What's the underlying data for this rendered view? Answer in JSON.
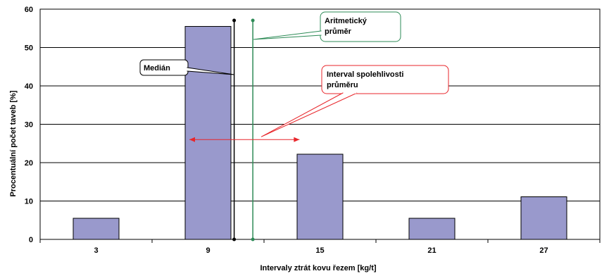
{
  "chart_data": {
    "type": "bar",
    "categories": [
      "3",
      "9",
      "15",
      "21",
      "27"
    ],
    "values": [
      5.5,
      55.5,
      22.2,
      5.5,
      11.1
    ],
    "xlabel": "Intervaly  ztrát kovu řezem [kg/t]",
    "ylabel": "Procentuální počet taveb [%]",
    "ylim": [
      0,
      60
    ],
    "yticks": [
      0,
      10,
      20,
      30,
      40,
      50,
      60
    ],
    "grid": true,
    "bar_color": "#9999cc",
    "median": {
      "x": 10.4,
      "label": "Medián",
      "color": "#000000"
    },
    "mean": {
      "x": 11.4,
      "label_lines": [
        "Aritmetický",
        "průměr"
      ],
      "color": "#2e8b57"
    },
    "confidence_interval": {
      "from": 8.0,
      "to": 13.9,
      "y": 26,
      "label_lines": [
        "Interval spolehlivosti",
        "průměru"
      ],
      "color": "#e8262b"
    }
  }
}
